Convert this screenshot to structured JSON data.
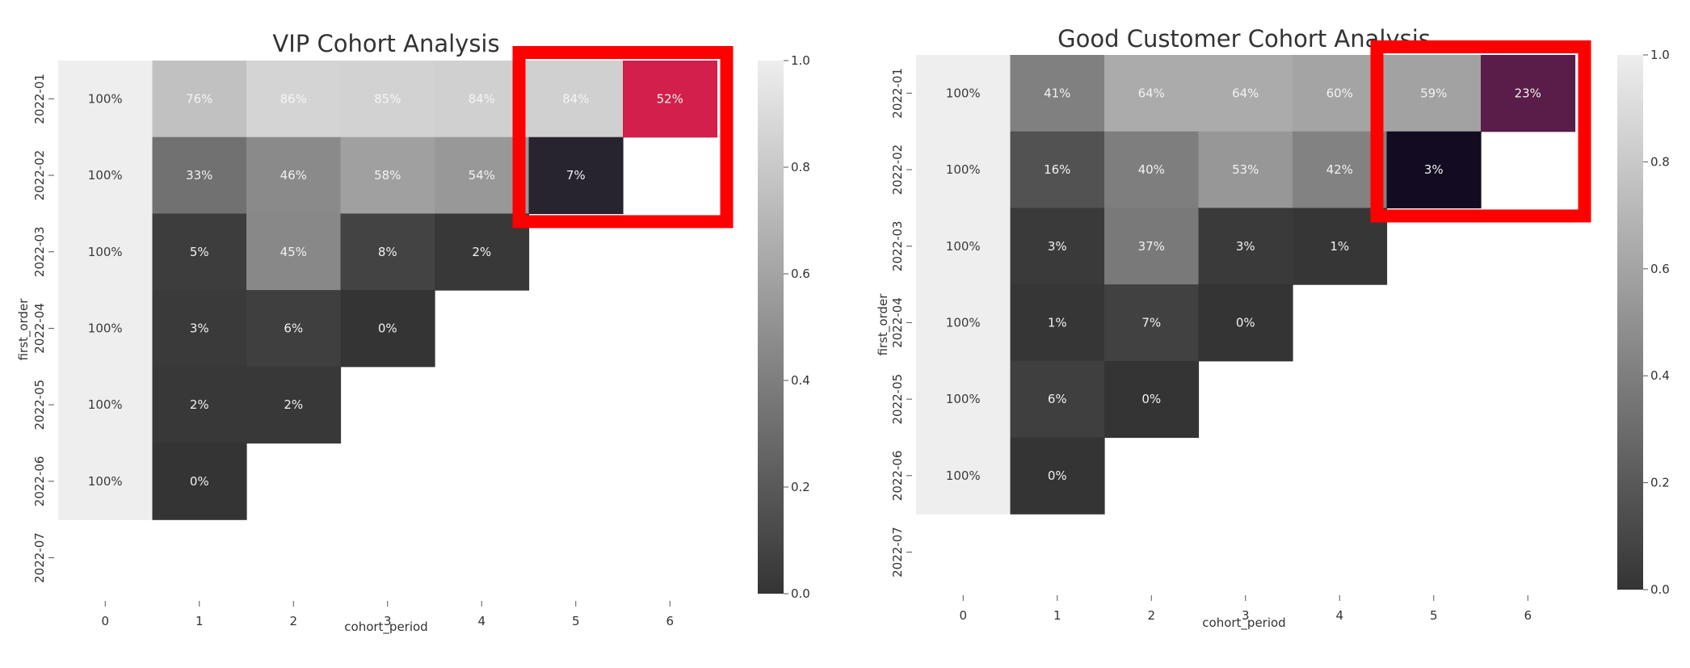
{
  "chart_data": [
    {
      "type": "heatmap",
      "title": "VIP Cohort Analysis",
      "xlabel": "cohort_period",
      "ylabel": "first_order",
      "x_ticks": [
        "0",
        "1",
        "2",
        "3",
        "4",
        "5",
        "6"
      ],
      "y_ticks": [
        "2022-01",
        "2022-02",
        "2022-03",
        "2022-04",
        "2022-05",
        "2022-06",
        "2022-07"
      ],
      "values": [
        [
          1.0,
          0.76,
          0.86,
          0.85,
          0.84,
          0.84,
          0.52
        ],
        [
          1.0,
          0.33,
          0.46,
          0.58,
          0.54,
          0.07,
          null
        ],
        [
          1.0,
          0.05,
          0.45,
          0.08,
          0.02,
          null,
          null
        ],
        [
          1.0,
          0.03,
          0.06,
          0.0,
          null,
          null,
          null
        ],
        [
          1.0,
          0.02,
          0.02,
          null,
          null,
          null,
          null
        ],
        [
          1.0,
          0.0,
          null,
          null,
          null,
          null,
          null
        ],
        [
          null,
          null,
          null,
          null,
          null,
          null,
          null
        ]
      ],
      "labels": [
        [
          "100%",
          "76%",
          "86%",
          "85%",
          "84%",
          "84%",
          "52%"
        ],
        [
          "100%",
          "33%",
          "46%",
          "58%",
          "54%",
          "7%",
          ""
        ],
        [
          "100%",
          "5%",
          "45%",
          "8%",
          "2%",
          "",
          ""
        ],
        [
          "100%",
          "3%",
          "6%",
          "0%",
          "",
          "",
          ""
        ],
        [
          "100%",
          "2%",
          "2%",
          "",
          "",
          "",
          ""
        ],
        [
          "100%",
          "0%",
          "",
          "",
          "",
          "",
          ""
        ],
        [
          "",
          "",
          "",
          "",
          "",
          "",
          ""
        ]
      ],
      "vmin": 0.0,
      "vmax": 1.0,
      "colorbar_ticks": [
        "0.0",
        "0.2",
        "0.4",
        "0.6",
        "0.8",
        "1.0"
      ],
      "colorbar_values": [
        0.0,
        0.2,
        0.4,
        0.6,
        0.8,
        1.0
      ],
      "highlight_cells": [
        {
          "row": 0,
          "col": 6,
          "color": "#d21f4b"
        },
        {
          "row": 1,
          "col": 5,
          "color": "#27232f"
        }
      ],
      "highlight_box": {
        "rows": [
          0,
          1
        ],
        "cols": [
          5,
          6
        ],
        "color": "#ff0000"
      }
    },
    {
      "type": "heatmap",
      "title": "Good Customer Cohort Analysis",
      "xlabel": "cohort_period",
      "ylabel": "first_order",
      "x_ticks": [
        "0",
        "1",
        "2",
        "3",
        "4",
        "5",
        "6"
      ],
      "y_ticks": [
        "2022-01",
        "2022-02",
        "2022-03",
        "2022-04",
        "2022-05",
        "2022-06",
        "2022-07"
      ],
      "values": [
        [
          1.0,
          0.41,
          0.64,
          0.64,
          0.6,
          0.59,
          0.23
        ],
        [
          1.0,
          0.16,
          0.4,
          0.53,
          0.42,
          0.03,
          null
        ],
        [
          1.0,
          0.03,
          0.37,
          0.03,
          0.01,
          null,
          null
        ],
        [
          1.0,
          0.01,
          0.07,
          0.0,
          null,
          null,
          null
        ],
        [
          1.0,
          0.06,
          0.0,
          null,
          null,
          null,
          null
        ],
        [
          1.0,
          0.0,
          null,
          null,
          null,
          null,
          null
        ],
        [
          null,
          null,
          null,
          null,
          null,
          null,
          null
        ]
      ],
      "labels": [
        [
          "100%",
          "41%",
          "64%",
          "64%",
          "60%",
          "59%",
          "23%"
        ],
        [
          "100%",
          "16%",
          "40%",
          "53%",
          "42%",
          "3%",
          ""
        ],
        [
          "100%",
          "3%",
          "37%",
          "3%",
          "1%",
          "",
          ""
        ],
        [
          "100%",
          "1%",
          "7%",
          "0%",
          "",
          "",
          ""
        ],
        [
          "100%",
          "6%",
          "0%",
          "",
          "",
          "",
          ""
        ],
        [
          "100%",
          "0%",
          "",
          "",
          "",
          "",
          ""
        ],
        [
          "",
          "",
          "",
          "",
          "",
          "",
          ""
        ]
      ],
      "vmin": 0.0,
      "vmax": 1.0,
      "colorbar_ticks": [
        "0.0",
        "0.2",
        "0.4",
        "0.6",
        "0.8",
        "1.0"
      ],
      "colorbar_values": [
        0.0,
        0.2,
        0.4,
        0.6,
        0.8,
        1.0
      ],
      "highlight_cells": [
        {
          "row": 0,
          "col": 6,
          "color": "#5a1c48"
        },
        {
          "row": 1,
          "col": 5,
          "color": "#120b22"
        }
      ],
      "highlight_box": {
        "rows": [
          0,
          1
        ],
        "cols": [
          5,
          6
        ],
        "color": "#ff0000"
      }
    }
  ]
}
